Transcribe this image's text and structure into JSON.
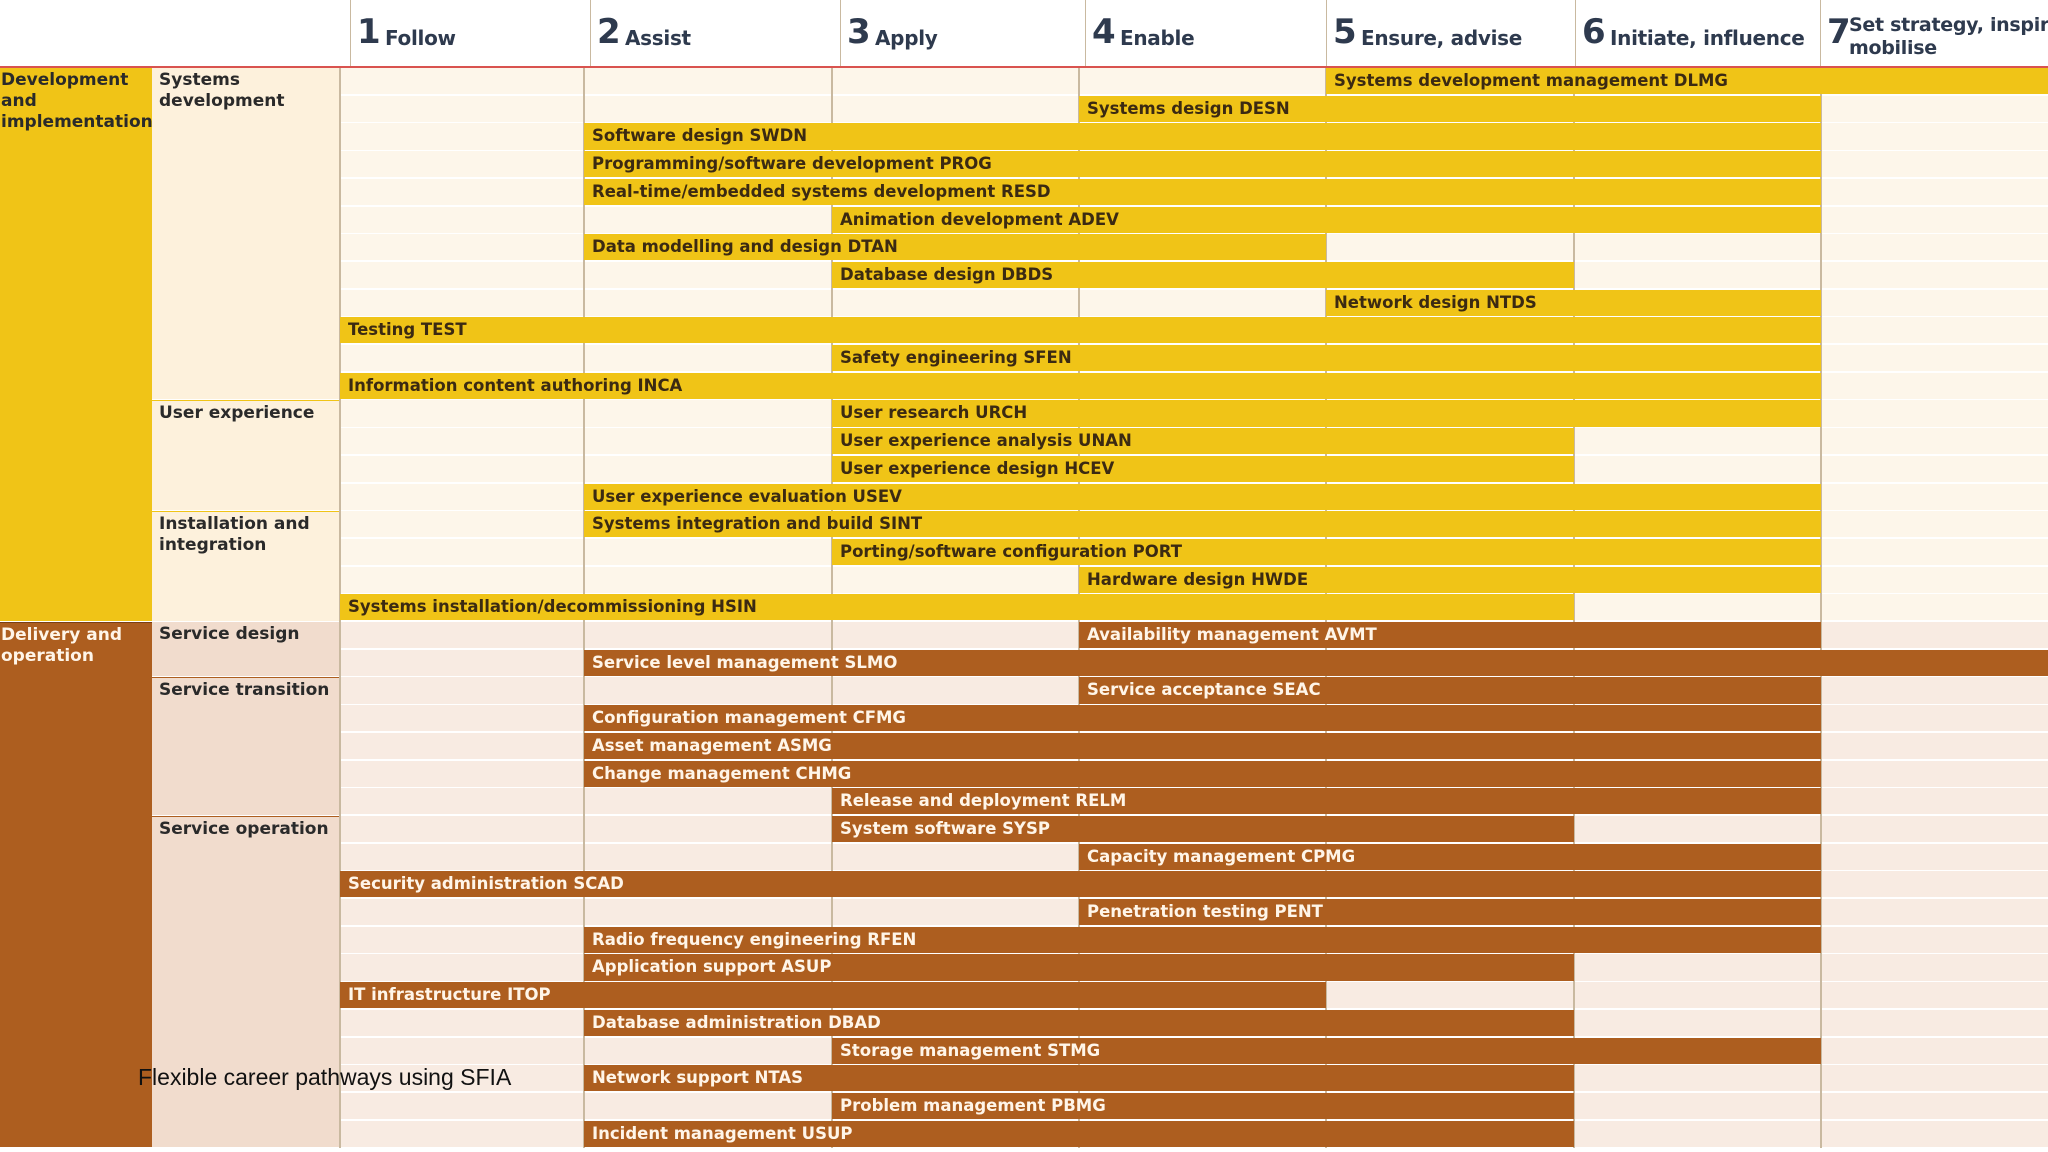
{
  "caption": "Flexible career pathways using SFIA",
  "levels": [
    {
      "num": "1",
      "label": "Follow"
    },
    {
      "num": "2",
      "label": "Assist"
    },
    {
      "num": "3",
      "label": "Apply"
    },
    {
      "num": "4",
      "label": "Enable"
    },
    {
      "num": "5",
      "label": "Ensure, advise"
    },
    {
      "num": "6",
      "label": "Initiate, influence"
    },
    {
      "num": "7",
      "label": "Set strategy, inspire, mobilise"
    }
  ],
  "categories": [
    {
      "name": "Development and implementation",
      "theme": "dev",
      "subcategories": [
        {
          "name": "Systems development",
          "skills": [
            {
              "label": "Systems development management DLMG",
              "from": 5,
              "to": 7
            },
            {
              "label": "Systems design DESN",
              "from": 4,
              "to": 6
            },
            {
              "label": "Software design SWDN",
              "from": 2,
              "to": 6
            },
            {
              "label": "Programming/software development PROG",
              "from": 2,
              "to": 6
            },
            {
              "label": "Real-time/embedded systems development RESD",
              "from": 2,
              "to": 6
            },
            {
              "label": "Animation development ADEV",
              "from": 3,
              "to": 6
            },
            {
              "label": "Data modelling and design DTAN",
              "from": 2,
              "to": 4
            },
            {
              "label": "Database design DBDS",
              "from": 3,
              "to": 5
            },
            {
              "label": "Network design NTDS",
              "from": 5,
              "to": 6
            },
            {
              "label": "Testing TEST",
              "from": 1,
              "to": 6
            },
            {
              "label": "Safety engineering SFEN",
              "from": 3,
              "to": 6
            },
            {
              "label": "Information content authoring INCA",
              "from": 1,
              "to": 6
            }
          ]
        },
        {
          "name": "User experience",
          "skills": [
            {
              "label": "User research URCH",
              "from": 3,
              "to": 6
            },
            {
              "label": "User experience analysis UNAN",
              "from": 3,
              "to": 5
            },
            {
              "label": "User experience design HCEV",
              "from": 3,
              "to": 5
            },
            {
              "label": "User experience evaluation USEV",
              "from": 2,
              "to": 6
            }
          ]
        },
        {
          "name": "Installation and integration",
          "skills": [
            {
              "label": "Systems integration and build SINT",
              "from": 2,
              "to": 6
            },
            {
              "label": "Porting/software configuration PORT",
              "from": 3,
              "to": 6
            },
            {
              "label": "Hardware design HWDE",
              "from": 4,
              "to": 6
            },
            {
              "label": "Systems installation/decommissioning HSIN",
              "from": 1,
              "to": 5
            }
          ]
        }
      ]
    },
    {
      "name": "Delivery and operation",
      "theme": "del",
      "subcategories": [
        {
          "name": "Service design",
          "skills": [
            {
              "label": "Availability management AVMT",
              "from": 4,
              "to": 6
            },
            {
              "label": "Service level management SLMO",
              "from": 2,
              "to": 7
            }
          ]
        },
        {
          "name": "Service transition",
          "skills": [
            {
              "label": "Service acceptance SEAC",
              "from": 4,
              "to": 6
            },
            {
              "label": "Configuration management CFMG",
              "from": 2,
              "to": 6
            },
            {
              "label": "Asset management ASMG",
              "from": 2,
              "to": 6
            },
            {
              "label": "Change management CHMG",
              "from": 2,
              "to": 6
            },
            {
              "label": "Release and deployment RELM",
              "from": 3,
              "to": 6
            }
          ]
        },
        {
          "name": "Service operation",
          "skills": [
            {
              "label": "System software SYSP",
              "from": 3,
              "to": 5
            },
            {
              "label": "Capacity management CPMG",
              "from": 4,
              "to": 6
            },
            {
              "label": "Security administration SCAD",
              "from": 1,
              "to": 6
            },
            {
              "label": "Penetration testing PENT",
              "from": 4,
              "to": 6
            },
            {
              "label": "Radio frequency engineering RFEN",
              "from": 2,
              "to": 6
            },
            {
              "label": "Application support ASUP",
              "from": 2,
              "to": 5
            },
            {
              "label": "IT infrastructure ITOP",
              "from": 1,
              "to": 4
            },
            {
              "label": "Database administration DBAD",
              "from": 2,
              "to": 5
            },
            {
              "label": "Storage management STMG",
              "from": 3,
              "to": 6
            },
            {
              "label": "Network support NTAS",
              "from": 2,
              "to": 5
            },
            {
              "label": "Problem management PBMG",
              "from": 3,
              "to": 5
            },
            {
              "label": "Incident management USUP",
              "from": 2,
              "to": 5
            }
          ]
        }
      ]
    }
  ],
  "colors": {
    "dev_bar": "#f0c417",
    "dev_sub_bg": "#fdf1dc",
    "dev_cell_bg": "#fdf6ea",
    "del_bar": "#ad5e1f",
    "del_sub_bg": "#f1dccd",
    "del_cell_bg": "#f8ebe2",
    "header_rule": "#d9534f"
  }
}
